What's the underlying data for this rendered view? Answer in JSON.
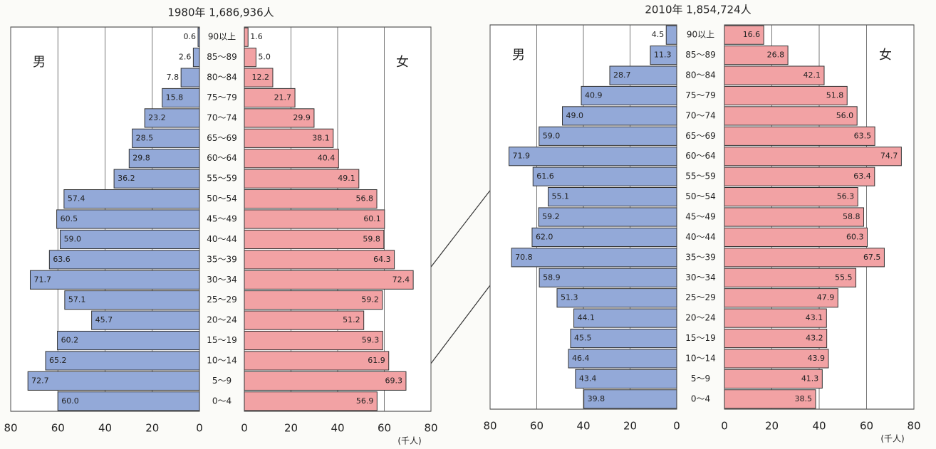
{
  "chart_data": [
    {
      "type": "pyramid",
      "title": "1980年 1,686,936人",
      "categories": [
        "90以上",
        "85～89",
        "80～84",
        "75～79",
        "70～74",
        "65～69",
        "60～64",
        "55～59",
        "50～54",
        "45～49",
        "40～44",
        "35～39",
        "30～34",
        "25～29",
        "20～24",
        "15～19",
        "10～14",
        "5～9",
        "0～4"
      ],
      "series": [
        {
          "name": "男",
          "color": "#93a9d8",
          "side": "left",
          "values": [
            0.6,
            2.6,
            7.8,
            15.8,
            23.2,
            28.5,
            29.8,
            36.2,
            57.4,
            60.5,
            59.0,
            63.6,
            71.7,
            57.1,
            45.7,
            60.2,
            65.2,
            72.7,
            60.0
          ],
          "value_labels": [
            "0.6",
            "2.6",
            "7.8",
            "15.8",
            "23.2",
            "28.5",
            "29.8",
            "36.2",
            "57.4",
            "60.5",
            "59.0",
            "63.6",
            "71.7",
            "57.1",
            "45.7",
            "60.2",
            "65.2",
            "72.7",
            "60.0"
          ]
        },
        {
          "name": "女",
          "color": "#f2a2a4",
          "side": "right",
          "values": [
            1.6,
            5.0,
            12.2,
            21.7,
            29.9,
            38.1,
            40.4,
            49.1,
            56.8,
            60.1,
            59.8,
            64.3,
            72.4,
            59.2,
            51.2,
            59.3,
            61.9,
            69.3,
            56.9
          ],
          "value_labels": [
            "1.6",
            "5.0",
            "12.2",
            "21.7",
            "29.9",
            "38.1",
            "40.4",
            "49.1",
            "56.8",
            "60.1",
            "59.8",
            "64.3",
            "72.4",
            "59.2",
            "51.2",
            "59.3",
            "61.9",
            "69.3",
            "56.9"
          ]
        }
      ],
      "xlim": [
        0,
        80
      ],
      "xticks": [
        0,
        20,
        40,
        60,
        80
      ],
      "grid": true,
      "unit_label": "(千人)"
    },
    {
      "type": "pyramid",
      "title": "2010年 1,854,724人",
      "categories": [
        "90以上",
        "85～89",
        "80～84",
        "75～79",
        "70～74",
        "65～69",
        "60～64",
        "55～59",
        "50～54",
        "45～49",
        "40～44",
        "35～39",
        "30～34",
        "25～29",
        "20～24",
        "15～19",
        "10～14",
        "5～9",
        "0～4"
      ],
      "series": [
        {
          "name": "男",
          "color": "#93a9d8",
          "side": "left",
          "values": [
            4.5,
            11.3,
            28.7,
            40.9,
            49.0,
            59.0,
            71.9,
            61.6,
            55.1,
            59.2,
            62.0,
            70.8,
            58.9,
            51.3,
            44.1,
            45.5,
            46.4,
            43.4,
            39.8
          ],
          "value_labels": [
            "4.5",
            "11.3",
            "28.7",
            "40.9",
            "49.0",
            "59.0",
            "71.9",
            "61.6",
            "55.1",
            "59.2",
            "62.0",
            "70.8",
            "58.9",
            "51.3",
            "44.1",
            "45.5",
            "46.4",
            "43.4",
            "39.8"
          ]
        },
        {
          "name": "女",
          "color": "#f2a2a4",
          "side": "right",
          "values": [
            16.6,
            26.8,
            42.1,
            51.8,
            56.0,
            63.5,
            74.7,
            63.4,
            56.3,
            58.8,
            60.3,
            67.5,
            55.5,
            47.9,
            43.1,
            43.2,
            43.9,
            41.3,
            38.5
          ],
          "value_labels": [
            "16.6",
            "26.8",
            "42.1",
            "51.8",
            "56.0",
            "63.5",
            "74.7",
            "63.4",
            "56.3",
            "58.8",
            "60.3",
            "67.5",
            "55.5",
            "47.9",
            "43.1",
            "43.2",
            "43.9",
            "41.3",
            "38.5"
          ]
        }
      ],
      "xlim": [
        0,
        80
      ],
      "xticks": [
        0,
        20,
        40,
        60,
        80
      ],
      "grid": true,
      "unit_label": "(千人)"
    }
  ]
}
